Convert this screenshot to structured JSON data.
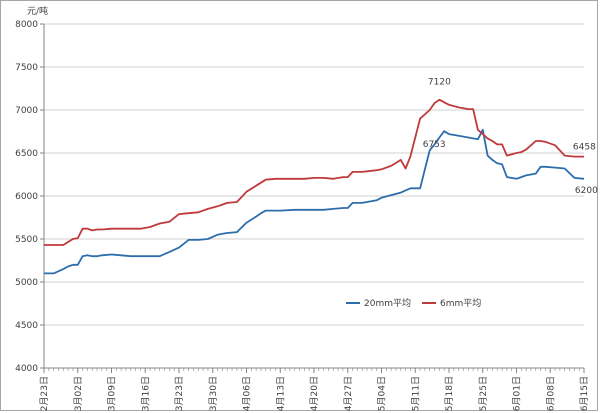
{
  "chart_data": {
    "type": "line",
    "title": "",
    "unit_label": "元/吨",
    "xlabel": "",
    "ylabel": "",
    "ylim": [
      4000,
      8000
    ],
    "yticks": [
      4000,
      4500,
      5000,
      5500,
      6000,
      6500,
      7000,
      7500,
      8000
    ],
    "grid": "horizontal",
    "legend_position": "center-right",
    "x_tick_labels": [
      "2月23日",
      "3月02日",
      "3月09日",
      "3月16日",
      "3月23日",
      "3月30日",
      "4月06日",
      "4月13日",
      "4月20日",
      "4月27日",
      "5月04日",
      "5月11日",
      "5月18日",
      "5月25日",
      "6月01日",
      "6月08日",
      "6月15日"
    ],
    "x_domain": [
      0,
      112
    ],
    "series": [
      {
        "name": "20mm平均",
        "color": "#2e6dac",
        "x": [
          0,
          2,
          4,
          5,
          6,
          7,
          8,
          9,
          10,
          11,
          12,
          14,
          16,
          18,
          21,
          24,
          26,
          28,
          30,
          32,
          34,
          36,
          37,
          38,
          40,
          42,
          44,
          45,
          46,
          48,
          49,
          52,
          54,
          56,
          58,
          60,
          62,
          63,
          64,
          66,
          69,
          70,
          72,
          74,
          76,
          78,
          80,
          81,
          82,
          83,
          84,
          86,
          88,
          90,
          91,
          92,
          93,
          94,
          95,
          96,
          98,
          99,
          100,
          102,
          103,
          104,
          106,
          108,
          110,
          112
        ],
        "values": [
          5100,
          5100,
          5150,
          5180,
          5200,
          5200,
          5300,
          5310,
          5300,
          5300,
          5310,
          5320,
          5310,
          5300,
          5300,
          5300,
          5350,
          5400,
          5490,
          5490,
          5500,
          5550,
          5560,
          5570,
          5580,
          5690,
          5760,
          5800,
          5830,
          5830,
          5830,
          5840,
          5840,
          5840,
          5840,
          5850,
          5860,
          5860,
          5920,
          5920,
          5950,
          5980,
          6010,
          6040,
          6090,
          6090,
          6530,
          6600,
          6680,
          6753,
          6720,
          6700,
          6680,
          6660,
          6770,
          6470,
          6420,
          6380,
          6370,
          6220,
          6200,
          6220,
          6240,
          6260,
          6340,
          6340,
          6330,
          6320,
          6210,
          6200
        ]
      },
      {
        "name": "6mm平均",
        "color": "#c0393b",
        "x": [
          0,
          2,
          4,
          6,
          7,
          8,
          9,
          10,
          11,
          12,
          14,
          16,
          18,
          20,
          22,
          24,
          26,
          28,
          30,
          32,
          34,
          36,
          37,
          38,
          40,
          42,
          44,
          46,
          48,
          50,
          52,
          54,
          56,
          58,
          60,
          62,
          63,
          64,
          66,
          69,
          70,
          72,
          74,
          75,
          76,
          78,
          80,
          81,
          82,
          83,
          84,
          86,
          88,
          89,
          90,
          91,
          92,
          93,
          94,
          95,
          96,
          98,
          99,
          100,
          102,
          103,
          104,
          106,
          108,
          110,
          112
        ],
        "values": [
          5430,
          5430,
          5430,
          5500,
          5510,
          5620,
          5620,
          5600,
          5610,
          5610,
          5620,
          5620,
          5620,
          5620,
          5640,
          5680,
          5700,
          5790,
          5800,
          5810,
          5850,
          5880,
          5900,
          5920,
          5930,
          6050,
          6120,
          6190,
          6200,
          6200,
          6200,
          6200,
          6210,
          6210,
          6200,
          6220,
          6220,
          6280,
          6280,
          6300,
          6310,
          6350,
          6420,
          6320,
          6460,
          6900,
          7000,
          7080,
          7120,
          7090,
          7060,
          7030,
          7010,
          7010,
          6770,
          6720,
          6670,
          6640,
          6600,
          6600,
          6470,
          6500,
          6510,
          6540,
          6640,
          6640,
          6630,
          6590,
          6470,
          6458,
          6458
        ]
      }
    ],
    "annotations": [
      {
        "text": "7120",
        "x": 82,
        "y": 7120,
        "series": "6mm平均"
      },
      {
        "text": "6753",
        "x": 83,
        "y": 6753,
        "series": "20mm平均"
      },
      {
        "text": "6458",
        "x": 110,
        "y": 6458,
        "series": "6mm平均"
      },
      {
        "text": "6200",
        "x": 110,
        "y": 6200,
        "series": "20mm平均"
      }
    ]
  }
}
